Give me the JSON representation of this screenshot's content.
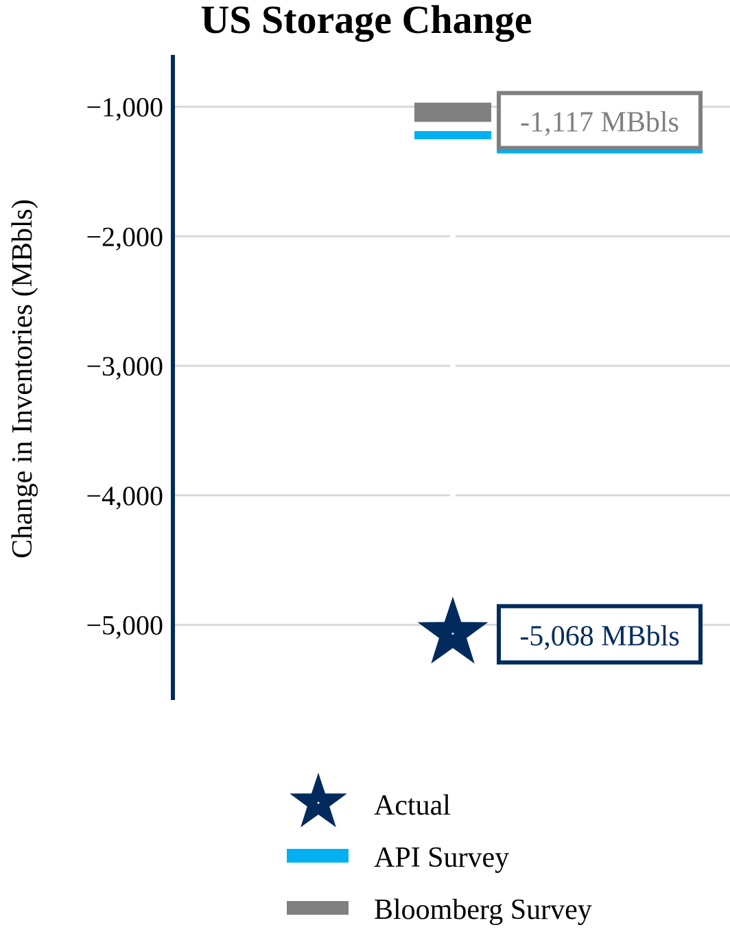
{
  "chart_data": {
    "type": "scatter",
    "title": "US Storage Change",
    "ylabel": "Change in Inventories (MBbls)",
    "ylim": [
      -5580,
      -600
    ],
    "yticks": [
      -1000,
      -2000,
      -3000,
      -4000,
      -5000
    ],
    "ytick_labels": [
      "−1,000",
      "−2,000",
      "−3,000",
      "−4,000",
      "−5,000"
    ],
    "grid": true,
    "legend_position": "bottom",
    "series": [
      {
        "name": "Actual",
        "key": "actual",
        "marker": "star",
        "color": "#002b5c",
        "value": -5068,
        "label": "-5,068 MBbls"
      },
      {
        "name": "API Survey",
        "key": "api",
        "marker": "bar",
        "color": "#00b0f0",
        "value": -1220
      },
      {
        "name": "Bloomberg Survey",
        "key": "bloomberg",
        "marker": "bar",
        "color": "#808080",
        "value": -1117,
        "label": "-1,117 MBbls"
      }
    ],
    "colors": {
      "axis": "#002b5c",
      "grid": "#d9d9d9",
      "actual": "#002b5c",
      "api": "#00b0f0",
      "bloomberg": "#808080"
    }
  }
}
